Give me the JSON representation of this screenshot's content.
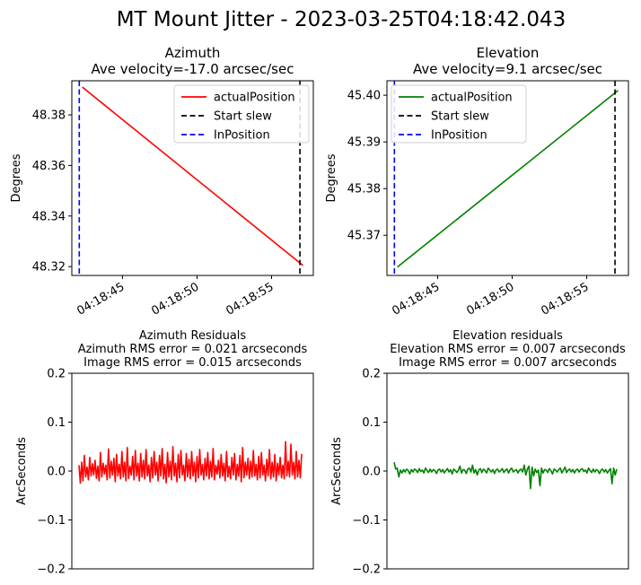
{
  "suptitle": "MT Mount Jitter - 2023-03-25T04:18:42.043",
  "chart_data": [
    {
      "type": "line",
      "title": "Azimuth",
      "subtitle": "Ave velocity=-17.0 arcsec/sec",
      "xlabel": "",
      "ylabel": "Degrees",
      "x_time_ticks": [
        "04:18:45",
        "04:18:50",
        "04:18:55"
      ],
      "x_tick_seconds": [
        45,
        50,
        55
      ],
      "xlim_seconds": [
        41.6,
        57.8
      ],
      "ylim": [
        48.3165,
        48.3935
      ],
      "yticks": [
        48.32,
        48.34,
        48.36,
        48.38
      ],
      "series": [
        {
          "name": "actualPosition",
          "color": "#ff0000",
          "x": [
            42.3,
            57.1
          ],
          "y": [
            48.391,
            48.3205
          ]
        }
      ],
      "vlines": [
        {
          "name": "Start slew",
          "color": "#000000",
          "style": "dashed",
          "x": 56.9
        },
        {
          "name": "InPosition",
          "color": "#0000ff",
          "style": "dashed",
          "x": 42.1
        }
      ],
      "legend": [
        "actualPosition",
        "Start slew",
        "InPosition"
      ],
      "legend_position": "top-right",
      "tick_label_rotation": 30
    },
    {
      "type": "line",
      "title": "Elevation",
      "subtitle": "Ave velocity=9.1 arcsec/sec",
      "xlabel": "",
      "ylabel": "Degrees",
      "x_time_ticks": [
        "04:18:45",
        "04:18:50",
        "04:18:55"
      ],
      "x_tick_seconds": [
        45,
        50,
        55
      ],
      "xlim_seconds": [
        41.6,
        57.8
      ],
      "ylim": [
        45.3614,
        45.4031
      ],
      "yticks": [
        45.37,
        45.38,
        45.39,
        45.4
      ],
      "series": [
        {
          "name": "actualPosition",
          "color": "#008000",
          "x": [
            42.3,
            57.1
          ],
          "y": [
            45.3632,
            45.401
          ]
        }
      ],
      "vlines": [
        {
          "name": "Start slew",
          "color": "#000000",
          "style": "dashed",
          "x": 56.9
        },
        {
          "name": "InPosition",
          "color": "#0000ff",
          "style": "dashed",
          "x": 42.1
        }
      ],
      "legend": [
        "actualPosition",
        "Start slew",
        "InPosition"
      ],
      "legend_position": "top-left",
      "tick_label_rotation": 30
    },
    {
      "type": "line",
      "title_lines": [
        "Azimuth Residuals",
        "Azimuth RMS error = 0.021 arcseconds",
        "Image RMS error = 0.015 arcseconds"
      ],
      "xlabel": "",
      "ylabel": "ArcSeconds",
      "ylim": [
        -0.2,
        0.2
      ],
      "yticks": [
        -0.2,
        -0.1,
        0.0,
        0.1,
        0.2
      ],
      "ytick_labels": [
        "−0.2",
        "−0.1",
        "0.0",
        "0.1",
        "0.2"
      ],
      "show_xticks": false,
      "series": [
        {
          "name": "",
          "color": "#ff0000",
          "values": [
            0.012,
            -0.025,
            0.018,
            -0.02,
            0.032,
            -0.012,
            0.008,
            -0.018,
            0.028,
            -0.01,
            0.015,
            -0.008,
            0.022,
            -0.015,
            0.01,
            -0.02,
            0.038,
            -0.012,
            0.016,
            -0.006,
            0.012,
            -0.018,
            0.045,
            -0.014,
            0.02,
            -0.008,
            0.026,
            -0.022,
            0.034,
            -0.01,
            0.014,
            -0.016,
            0.04,
            -0.012,
            0.018,
            -0.02,
            0.048,
            -0.015,
            0.01,
            -0.008,
            0.03,
            -0.018,
            0.042,
            -0.01,
            0.016,
            -0.02,
            0.036,
            -0.012,
            0.022,
            -0.016,
            0.044,
            -0.01,
            0.012,
            -0.022,
            0.028,
            -0.014,
            0.04,
            -0.008,
            0.018,
            -0.02,
            0.032,
            -0.01,
            0.046,
            -0.016,
            0.014,
            -0.024,
            0.038,
            -0.012,
            0.02,
            -0.018,
            0.05,
            -0.01,
            0.016,
            -0.022,
            0.034,
            -0.014,
            0.042,
            -0.008,
            0.012,
            -0.02,
            0.036,
            -0.012,
            0.024,
            -0.016,
            0.04,
            -0.01,
            0.018,
            -0.022,
            0.03,
            -0.014,
            0.044,
            -0.008,
            0.014,
            -0.018,
            0.026,
            -0.01,
            0.038,
            -0.016,
            0.02,
            -0.012,
            0.046,
            -0.018,
            0.012,
            -0.006,
            0.022,
            -0.014,
            0.034,
            -0.01,
            0.016,
            -0.02,
            0.04,
            -0.012,
            0.01,
            -0.016,
            0.028,
            -0.008,
            0.036,
            -0.018,
            0.014,
            -0.01,
            0.032,
            -0.022,
            0.048,
            -0.014,
            0.018,
            -0.008,
            0.026,
            -0.016,
            0.02,
            -0.012,
            0.042,
            -0.01,
            0.014,
            -0.018,
            0.03,
            -0.014,
            0.038,
            -0.008,
            0.012,
            -0.02,
            0.024,
            -0.01,
            0.044,
            -0.016,
            0.018,
            -0.012,
            0.034,
            -0.02,
            0.016,
            -0.008,
            0.028,
            -0.014,
            0.012,
            -0.016,
            0.06,
            -0.01,
            0.02,
            -0.012,
            0.055,
            -0.008,
            0.018,
            -0.016,
            0.04,
            -0.012,
            0.022,
            -0.014,
            0.035
          ]
        }
      ]
    },
    {
      "type": "line",
      "title_lines": [
        "Elevation residuals",
        "Elevation RMS error = 0.007 arcseconds",
        "Image RMS error = 0.007 arcseconds"
      ],
      "xlabel": "",
      "ylabel": "ArcSeconds",
      "ylim": [
        -0.2,
        0.2
      ],
      "yticks": [
        -0.2,
        -0.1,
        0.0,
        0.1,
        0.2
      ],
      "ytick_labels": [
        "−0.2",
        "−0.1",
        "0.0",
        "0.1",
        "0.2"
      ],
      "show_xticks": false,
      "series": [
        {
          "name": "",
          "color": "#008000",
          "values": [
            0.018,
            0.004,
            0.006,
            -0.012,
            0.002,
            -0.004,
            0.003,
            -0.002,
            0.004,
            0.001,
            -0.006,
            0.003,
            -0.002,
            0.004,
            0.002,
            -0.003,
            0.005,
            -0.001,
            0.002,
            -0.004,
            0.006,
            0.001,
            -0.003,
            0.004,
            -0.002,
            0.003,
            0.001,
            -0.005,
            0.002,
            0.004,
            -0.002,
            0.003,
            -0.004,
            0.001,
            0.005,
            -0.002,
            0.003,
            -0.006,
            0.004,
            0.001,
            -0.003,
            0.002,
            0.01,
            -0.004,
            0.003,
            0.002,
            -0.005,
            0.004,
            0.006,
            -0.002,
            0.012,
            -0.004,
            0.003,
            -0.008,
            0.002,
            0.005,
            -0.003,
            0.004,
            0.001,
            -0.004,
            0.006,
            0.002,
            -0.002,
            0.003,
            -0.005,
            0.002,
            0.004,
            -0.002,
            0.001,
            0.005,
            -0.003,
            0.002,
            0.004,
            -0.004,
            0.003,
            0.006,
            -0.002,
            0.001,
            0.003,
            -0.004,
            0.002,
            0.004,
            -0.002,
            0.012,
            -0.008,
            0.004,
            0.01,
            -0.036,
            0.008,
            -0.01,
            0.004,
            -0.003,
            0.002,
            -0.03,
            0.006,
            -0.004,
            0.003,
            0.002,
            -0.003,
            0.005,
            0.001,
            -0.006,
            0.004,
            0.002,
            -0.002,
            0.003,
            0.006,
            -0.004,
            0.002,
            0.008,
            -0.003,
            0.002,
            0.004,
            -0.002,
            0.003,
            -0.004,
            0.002,
            0.004,
            -0.002,
            0.003,
            0.005,
            -0.001,
            0.002,
            -0.004,
            0.006,
            0.001,
            -0.003,
            0.004,
            -0.002,
            0.003,
            0.001,
            -0.005,
            0.002,
            0.004,
            -0.002,
            0.003,
            -0.004,
            0.001,
            0.005,
            -0.026,
            0.006,
            -0.008,
            0.004
          ]
        }
      ]
    }
  ]
}
